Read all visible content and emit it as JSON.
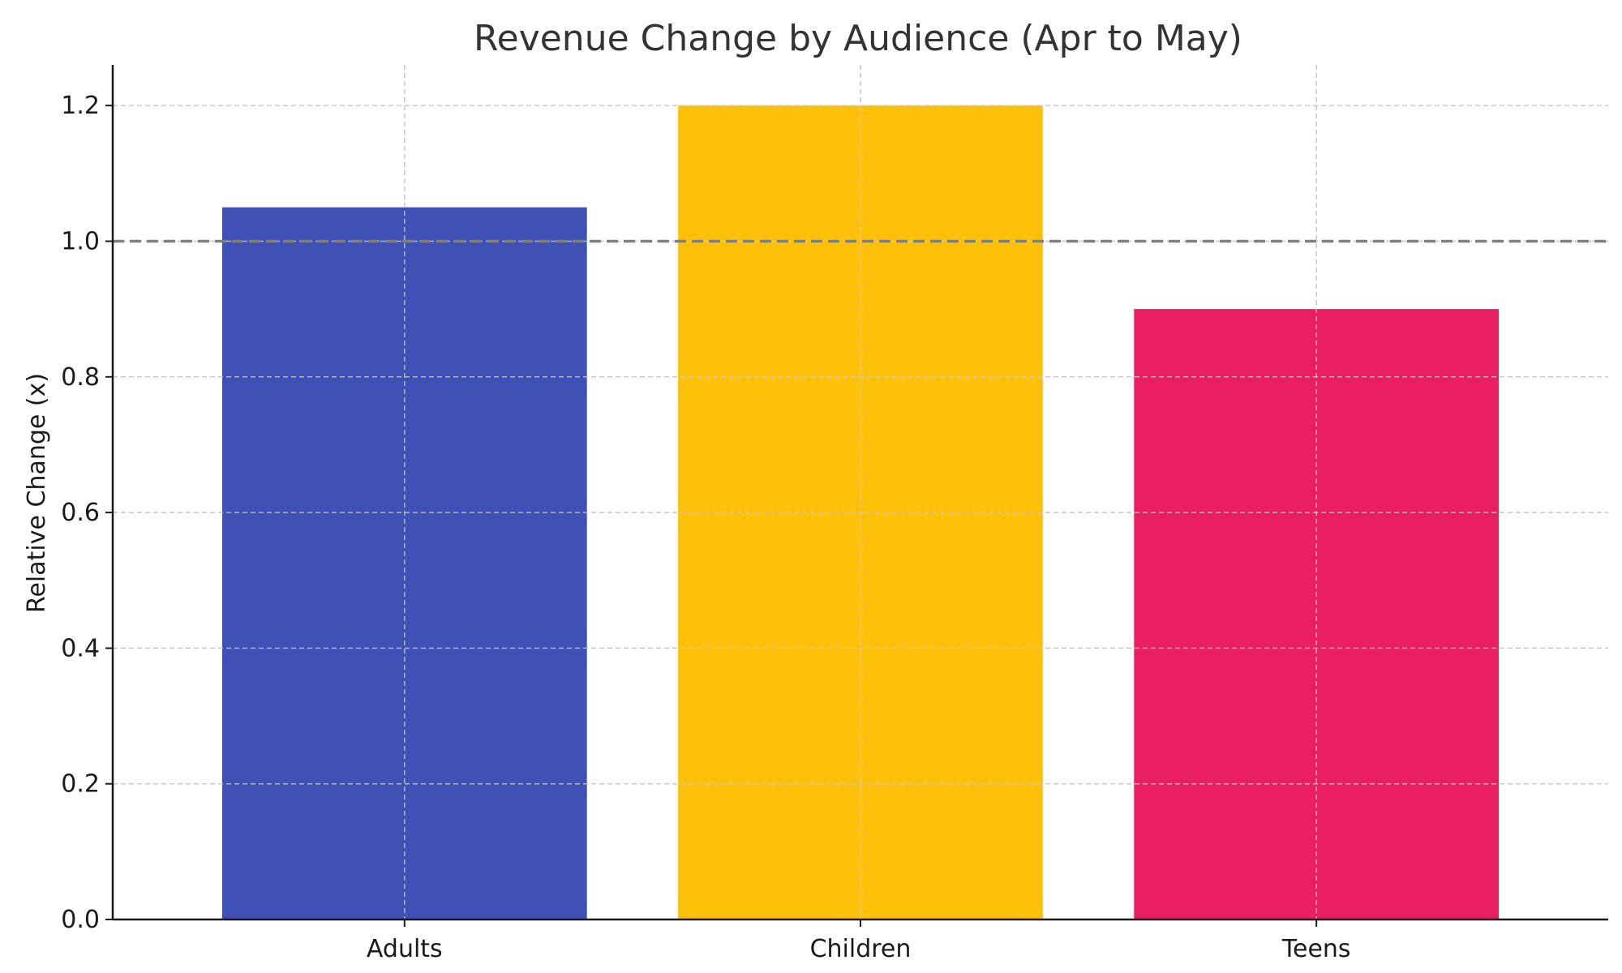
{
  "chart_data": {
    "type": "bar",
    "title": "Revenue Change by Audience (Apr to May)",
    "xlabel": "",
    "ylabel": "Relative Change (x)",
    "categories": [
      "Adults",
      "Children",
      "Teens"
    ],
    "values": [
      1.05,
      1.2,
      0.9
    ],
    "colors": [
      "#3f51b5",
      "#ffc107",
      "#e91e63"
    ],
    "ylim": [
      0,
      1.26
    ],
    "yticks": [
      0.0,
      0.2,
      0.4,
      0.6,
      0.8,
      1.0,
      1.2
    ],
    "ytick_labels": [
      "0.0",
      "0.2",
      "0.4",
      "0.6",
      "0.8",
      "1.0",
      "1.2"
    ],
    "reference_line": {
      "y": 1.0,
      "style": "dashed",
      "color": "#808080"
    },
    "grid": true,
    "grid_style": "dashed",
    "grid_color": "#cccccc",
    "legend": "none"
  }
}
